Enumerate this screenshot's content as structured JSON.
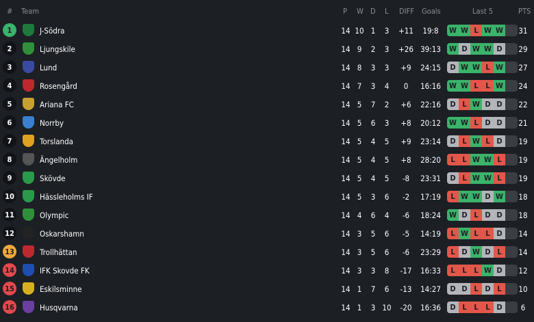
{
  "headers": {
    "rank": "#",
    "team": "Team",
    "p": "P",
    "w": "W",
    "d": "D",
    "l": "L",
    "diff": "DIFF",
    "goals": "Goals",
    "last5": "Last 5",
    "pts": "PTS"
  },
  "colors": {
    "promotion": "#3bb36b",
    "playoff": "#f2a93b",
    "relegation": "#e5484d",
    "win": "#3bb36b",
    "loss": "#e2574a",
    "draw": "#b3b5bb"
  },
  "rows": [
    {
      "rank": "1",
      "team": "J-Södra",
      "p": "14",
      "w": "10",
      "d": "1",
      "l": "3",
      "diff": "+11",
      "goals": "19:8",
      "last5": [
        "W",
        "W",
        "L",
        "W",
        "W"
      ],
      "pts": "31",
      "zone": "promotion"
    },
    {
      "rank": "2",
      "team": "Ljungskile",
      "p": "14",
      "w": "9",
      "d": "2",
      "l": "3",
      "diff": "+26",
      "goals": "39:13",
      "last5": [
        "W",
        "D",
        "W",
        "W",
        "D"
      ],
      "pts": "29"
    },
    {
      "rank": "3",
      "team": "Lund",
      "p": "14",
      "w": "8",
      "d": "3",
      "l": "3",
      "diff": "+9",
      "goals": "24:15",
      "last5": [
        "D",
        "W",
        "W",
        "L",
        "W"
      ],
      "pts": "27"
    },
    {
      "rank": "4",
      "team": "Rosengård",
      "p": "14",
      "w": "7",
      "d": "3",
      "l": "4",
      "diff": "0",
      "goals": "16:16",
      "last5": [
        "W",
        "W",
        "L",
        "L",
        "W"
      ],
      "pts": "24"
    },
    {
      "rank": "5",
      "team": "Ariana FC",
      "p": "14",
      "w": "5",
      "d": "7",
      "l": "2",
      "diff": "+6",
      "goals": "22:16",
      "last5": [
        "D",
        "L",
        "W",
        "D",
        "D"
      ],
      "pts": "22"
    },
    {
      "rank": "6",
      "team": "Norrby",
      "p": "14",
      "w": "5",
      "d": "6",
      "l": "3",
      "diff": "+8",
      "goals": "20:12",
      "last5": [
        "W",
        "W",
        "L",
        "D",
        "D"
      ],
      "pts": "21"
    },
    {
      "rank": "7",
      "team": "Torslanda",
      "p": "14",
      "w": "5",
      "d": "4",
      "l": "5",
      "diff": "+9",
      "goals": "23:14",
      "last5": [
        "D",
        "L",
        "W",
        "L",
        "D"
      ],
      "pts": "19"
    },
    {
      "rank": "8",
      "team": "Ängelholm",
      "p": "14",
      "w": "5",
      "d": "4",
      "l": "5",
      "diff": "+8",
      "goals": "28:20",
      "last5": [
        "L",
        "L",
        "W",
        "W",
        "L"
      ],
      "pts": "19"
    },
    {
      "rank": "9",
      "team": "Skövde",
      "p": "14",
      "w": "5",
      "d": "4",
      "l": "5",
      "diff": "-8",
      "goals": "23:31",
      "last5": [
        "D",
        "L",
        "W",
        "W",
        "L"
      ],
      "pts": "19"
    },
    {
      "rank": "10",
      "team": "Hässleholms IF",
      "p": "14",
      "w": "5",
      "d": "3",
      "l": "6",
      "diff": "-2",
      "goals": "17:19",
      "last5": [
        "L",
        "W",
        "W",
        "D",
        "W"
      ],
      "pts": "18"
    },
    {
      "rank": "11",
      "team": "Olympic",
      "p": "14",
      "w": "4",
      "d": "6",
      "l": "4",
      "diff": "-6",
      "goals": "18:24",
      "last5": [
        "W",
        "D",
        "L",
        "D",
        "D"
      ],
      "pts": "18"
    },
    {
      "rank": "12",
      "team": "Oskarshamn",
      "p": "14",
      "w": "3",
      "d": "5",
      "l": "6",
      "diff": "-5",
      "goals": "14:19",
      "last5": [
        "L",
        "W",
        "L",
        "L",
        "D"
      ],
      "pts": "14"
    },
    {
      "rank": "13",
      "team": "Trollhättan",
      "p": "14",
      "w": "3",
      "d": "5",
      "l": "6",
      "diff": "-6",
      "goals": "23:29",
      "last5": [
        "L",
        "D",
        "W",
        "D",
        "L"
      ],
      "pts": "14",
      "zone": "playoff"
    },
    {
      "rank": "14",
      "team": "IFK Skovde FK",
      "p": "14",
      "w": "3",
      "d": "3",
      "l": "8",
      "diff": "-17",
      "goals": "16:33",
      "last5": [
        "L",
        "L",
        "L",
        "W",
        "D"
      ],
      "pts": "12",
      "zone": "relegation"
    },
    {
      "rank": "15",
      "team": "Eskilsminne",
      "p": "14",
      "w": "1",
      "d": "7",
      "l": "6",
      "diff": "-13",
      "goals": "14:27",
      "last5": [
        "D",
        "D",
        "L",
        "D",
        "L"
      ],
      "pts": "10",
      "zone": "relegation"
    },
    {
      "rank": "16",
      "team": "Husqvarna",
      "p": "14",
      "w": "1",
      "d": "3",
      "l": "10",
      "diff": "-20",
      "goals": "16:36",
      "last5": [
        "D",
        "L",
        "L",
        "L",
        "D"
      ],
      "pts": "6",
      "zone": "relegation"
    }
  ]
}
